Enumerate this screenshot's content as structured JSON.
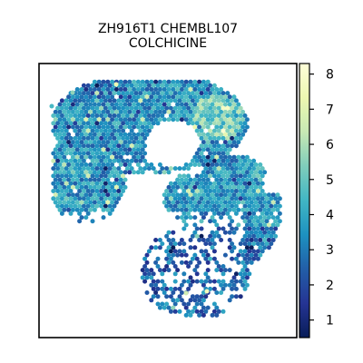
{
  "chart_data": {
    "type": "heatmap",
    "title_line1": "ZH916T1 CHEMBL107",
    "title_line2": "COLCHICINE",
    "colormap": "YlGnBu_r",
    "colorbar": {
      "min": 0.5,
      "max": 8.3,
      "ticks": [
        "1",
        "2",
        "3",
        "4",
        "5",
        "6",
        "7",
        "8"
      ],
      "colors": [
        "#081d58",
        "#253494",
        "#225ea8",
        "#1d91c0",
        "#41b6c4",
        "#7fcdbb",
        "#c7e9b4",
        "#edf8b1",
        "#ffffd9"
      ]
    },
    "axes_frame": true,
    "grid": false,
    "value_mean": 3.6
  }
}
